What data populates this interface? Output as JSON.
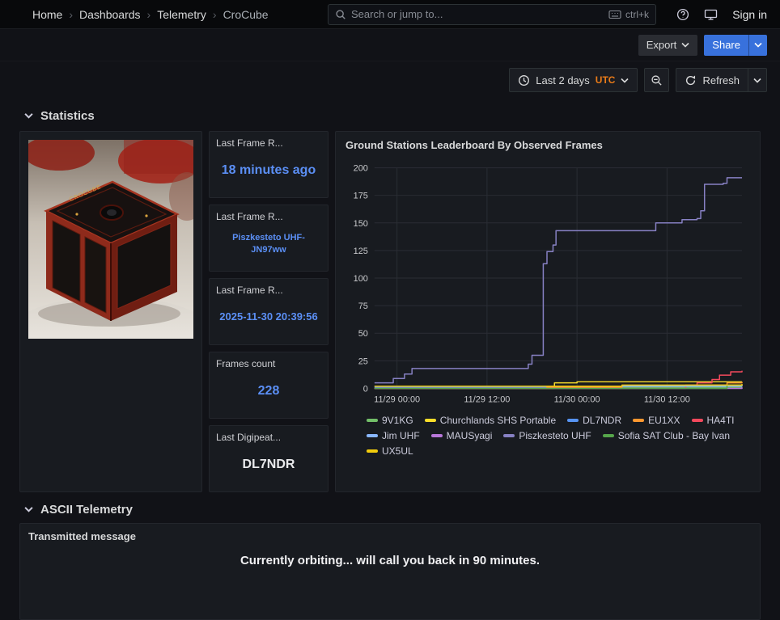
{
  "nav": {
    "breadcrumbs": [
      "Home",
      "Dashboards",
      "Telemetry",
      "CroCube"
    ],
    "separator": "›",
    "search_placeholder": "Search or jump to...",
    "shortcut": "ctrl+k",
    "sign_in": "Sign in"
  },
  "toolbar": {
    "export_label": "Export",
    "share_label": "Share"
  },
  "timebar": {
    "range_label": "Last 2 days",
    "timezone": "UTC",
    "refresh_label": "Refresh"
  },
  "sections": {
    "statistics": "Statistics",
    "ascii": "ASCII Telemetry"
  },
  "photo": {
    "cube_label": "CROCUBE"
  },
  "stats": [
    {
      "title": "Last Frame R...",
      "value": "18 minutes ago"
    },
    {
      "title": "Last Frame R...",
      "value": "Piszkesteto UHF-JN97ww"
    },
    {
      "title": "Last Frame R...",
      "value": "2025-11-30 20:39:56"
    },
    {
      "title": "Frames count",
      "value": "228"
    },
    {
      "title": "Last Digipeat...",
      "value": "DL7NDR"
    }
  ],
  "message_panel": {
    "title": "Transmitted message",
    "text": "Currently orbiting... will call you back in 90 minutes."
  },
  "colors": {
    "accent_blue": "#3871dc",
    "stat_value_blue": "#5b8ff5",
    "utc_orange": "#eb7b18"
  },
  "chart_data": {
    "type": "line",
    "title": "Ground Stations Leaderboard By Observed Frames",
    "line_style": "step-after",
    "grid": true,
    "legend_position": "bottom",
    "x_unit": "hours since 11/29 00:00 UTC",
    "xlim": [
      -3,
      46
    ],
    "ylim": [
      0,
      200
    ],
    "y_ticks": [
      0,
      25,
      50,
      75,
      100,
      125,
      150,
      175,
      200
    ],
    "x_ticks": [
      {
        "h": 0,
        "label": "11/29 00:00"
      },
      {
        "h": 12,
        "label": "11/29 12:00"
      },
      {
        "h": 24,
        "label": "11/30 00:00"
      },
      {
        "h": 36,
        "label": "11/30 12:00"
      }
    ],
    "series": [
      {
        "name": "9V1KG",
        "color": "#73bf69",
        "points": [
          [
            -3,
            1
          ],
          [
            46,
            1
          ]
        ]
      },
      {
        "name": "Churchlands SHS Portable",
        "color": "#fade2a",
        "points": [
          [
            -3,
            0
          ],
          [
            20.5,
            0
          ],
          [
            21,
            5
          ],
          [
            24,
            6
          ],
          [
            46,
            6
          ]
        ]
      },
      {
        "name": "DL7NDR",
        "color": "#5794f2",
        "points": [
          [
            -3,
            1
          ],
          [
            24,
            2
          ],
          [
            46,
            2
          ]
        ]
      },
      {
        "name": "EU1XX",
        "color": "#ff9830",
        "points": [
          [
            -3,
            0
          ],
          [
            20,
            1
          ],
          [
            30,
            2
          ],
          [
            40,
            3
          ],
          [
            44,
            5
          ],
          [
            46,
            6
          ]
        ]
      },
      {
        "name": "HA4TI",
        "color": "#f2495c",
        "points": [
          [
            -3,
            0
          ],
          [
            37,
            0
          ],
          [
            38.5,
            3
          ],
          [
            40,
            5
          ],
          [
            42,
            8
          ],
          [
            43,
            12
          ],
          [
            44.5,
            15
          ],
          [
            46,
            16
          ]
        ]
      },
      {
        "name": "Jim UHF",
        "color": "#8ab8ff",
        "points": [
          [
            -3,
            2
          ],
          [
            24,
            2
          ],
          [
            46,
            3
          ]
        ]
      },
      {
        "name": "MAUSyagi",
        "color": "#b877d9",
        "points": [
          [
            -3,
            0
          ],
          [
            46,
            1
          ]
        ]
      },
      {
        "name": "Piszkesteto UHF",
        "color": "#8781c4",
        "points": [
          [
            -3,
            5
          ],
          [
            -0.5,
            9
          ],
          [
            1,
            13
          ],
          [
            2,
            18
          ],
          [
            17.5,
            22
          ],
          [
            18,
            30
          ],
          [
            19.5,
            113
          ],
          [
            20,
            124
          ],
          [
            20.8,
            130
          ],
          [
            21.2,
            143
          ],
          [
            33.5,
            143
          ],
          [
            34.5,
            150
          ],
          [
            38,
            153
          ],
          [
            40,
            154
          ],
          [
            40.5,
            161
          ],
          [
            41,
            185
          ],
          [
            43.5,
            186
          ],
          [
            44,
            191
          ],
          [
            46,
            191
          ]
        ]
      },
      {
        "name": "Sofia SAT Club - Bay Ivan",
        "color": "#56a64b",
        "points": [
          [
            -3,
            0
          ],
          [
            42,
            0
          ],
          [
            44,
            3
          ],
          [
            46,
            3
          ]
        ]
      },
      {
        "name": "UX5UL",
        "color": "#f2cc0c",
        "points": [
          [
            -3,
            2
          ],
          [
            20,
            2
          ],
          [
            30,
            3
          ],
          [
            46,
            4
          ]
        ]
      }
    ]
  }
}
